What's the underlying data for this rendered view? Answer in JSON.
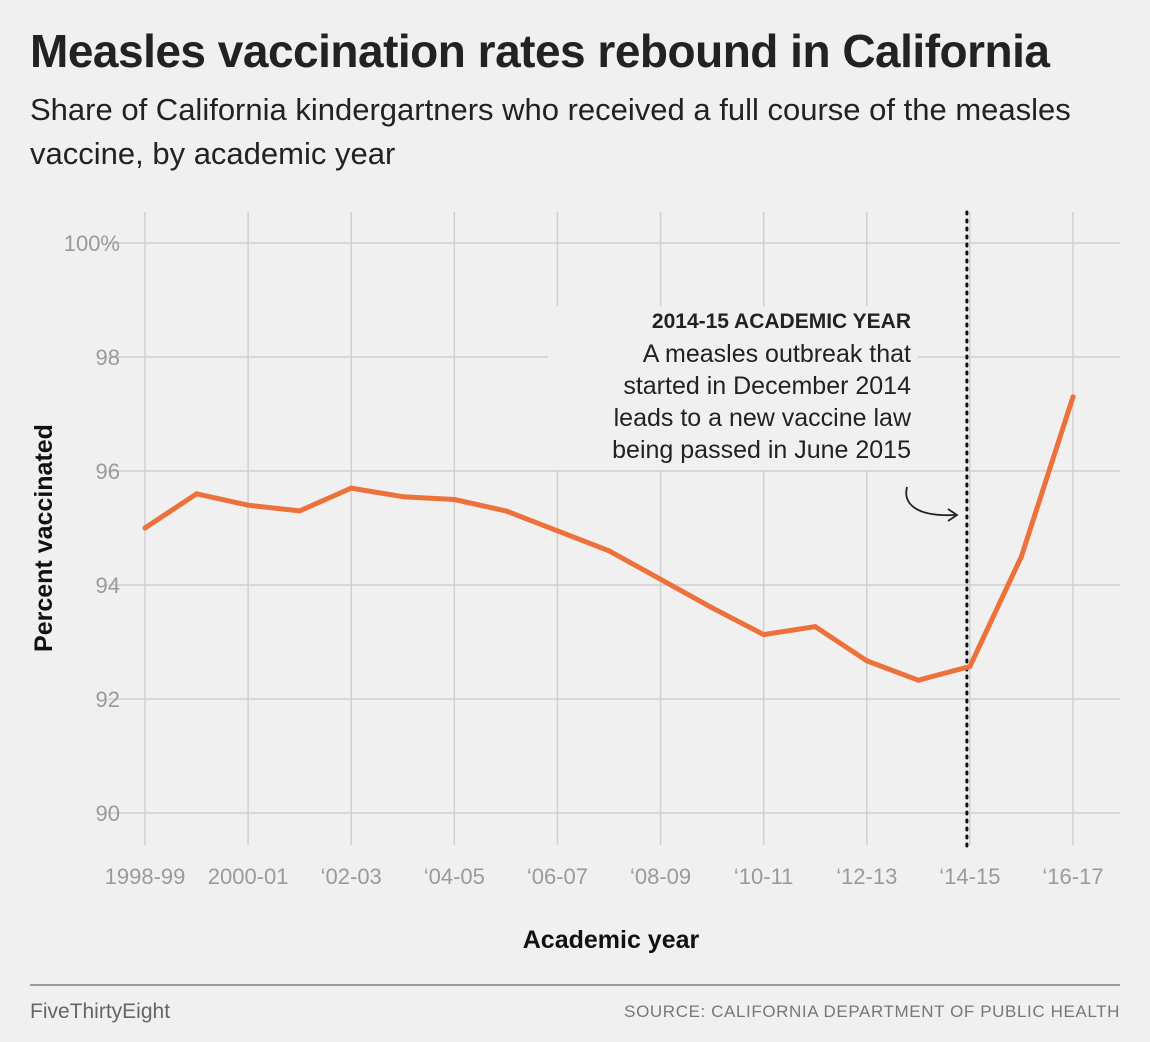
{
  "chart_data": {
    "type": "line",
    "title": "Measles vaccination rates rebound in California",
    "subtitle": "Share of California kindergartners who received a full course of the measles vaccine, by academic year",
    "xlabel": "Academic year",
    "ylabel": "Percent vaccinated",
    "ylim": [
      89.5,
      100.5
    ],
    "yticks": [
      90,
      92,
      94,
      96,
      98,
      100
    ],
    "ytick_labels": [
      "90",
      "92",
      "94",
      "96",
      "98",
      "100%"
    ],
    "x_tick_labels": [
      "1998-99",
      "2000-01",
      "‘02-03",
      "‘04-05",
      "‘06-07",
      "‘08-09",
      "‘10-11",
      "‘12-13",
      "‘14-15",
      "‘16-17"
    ],
    "grid": true,
    "series": [
      {
        "color": "#ed713a",
        "points": [
          {
            "x": "1998-99",
            "y": 95.0
          },
          {
            "x": "1999-00",
            "y": 95.6
          },
          {
            "x": "2000-01",
            "y": 95.4
          },
          {
            "x": "2001-02",
            "y": 95.3
          },
          {
            "x": "2002-03",
            "y": 95.7
          },
          {
            "x": "2003-04",
            "y": 95.55
          },
          {
            "x": "2004-05",
            "y": 95.5
          },
          {
            "x": "2005-06",
            "y": 95.3
          },
          {
            "x": "2006-07",
            "y": 94.95
          },
          {
            "x": "2007-08",
            "y": 94.6
          },
          {
            "x": "2008-09",
            "y": 94.1
          },
          {
            "x": "2009-10",
            "y": 93.6
          },
          {
            "x": "2010-11",
            "y": 93.13
          },
          {
            "x": "2011-12",
            "y": 93.27
          },
          {
            "x": "2012-13",
            "y": 92.67
          },
          {
            "x": "2013-14",
            "y": 92.33
          },
          {
            "x": "2014-15",
            "y": 92.57
          },
          {
            "x": "2015-16",
            "y": 94.5
          },
          {
            "x": "2016-17",
            "y": 97.3
          }
        ]
      }
    ],
    "annotation": {
      "x": "2014-15",
      "heading": "2014-15 ACADEMIC YEAR",
      "lines": [
        "A measles outbreak that",
        "started in December 2014",
        "leads to a new vaccine law",
        "being passed in June 2015"
      ]
    }
  },
  "footer": {
    "brand": "FiveThirtyEight",
    "source": "SOURCE: CALIFORNIA DEPARTMENT OF PUBLIC HEALTH"
  },
  "colors": {
    "line": "#ed713a",
    "grid": "#cfcfcf",
    "background": "#f0f0f0"
  }
}
